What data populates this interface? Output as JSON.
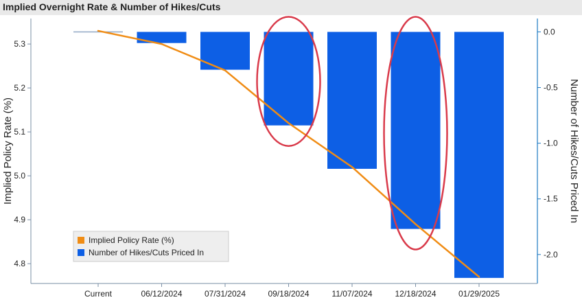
{
  "window": {
    "title": "Implied Overnight Rate & Number of Hikes/Cuts"
  },
  "chart_data": {
    "type": "bar",
    "title": "Implied Overnight Rate & Number of Hikes/Cuts",
    "categories": [
      "Current",
      "06/12/2024",
      "07/31/2024",
      "09/18/2024",
      "11/07/2024",
      "12/18/2024",
      "01/29/2025"
    ],
    "series": [
      {
        "name": "Number of Hikes/Cuts Priced In",
        "type": "bar",
        "axis": "right",
        "color": "#0d5fe5",
        "values": [
          0.0,
          -0.1,
          -0.34,
          -0.84,
          -1.23,
          -1.77,
          -2.21
        ]
      },
      {
        "name": "Implied Policy Rate (%)",
        "type": "line",
        "axis": "left",
        "color": "#f08c14",
        "values": [
          5.33,
          5.3,
          5.24,
          5.12,
          5.02,
          4.89,
          4.77
        ]
      }
    ],
    "ylabel_left": "Implied Policy Rate (%)",
    "ylabel_right": "Number of Hikes/Cuts Priced In",
    "ylim_left": [
      4.755,
      5.358
    ],
    "ylim_right": [
      -2.26,
      0.12
    ],
    "yticks_left": [
      "5.3",
      "5.2",
      "5.1",
      "5.0",
      "4.9",
      "4.8"
    ],
    "yticks_left_values": [
      5.3,
      5.2,
      5.1,
      5.0,
      4.9,
      4.8
    ],
    "yticks_right": [
      "0.0",
      "-0.5",
      "-1.0",
      "-1.5",
      "-2.0"
    ],
    "yticks_right_values": [
      0.0,
      -0.5,
      -1.0,
      -1.5,
      -2.0
    ],
    "legend": {
      "placement": "bottom-left",
      "items": [
        "Implied Policy Rate (%)",
        "Number of Hikes/Cuts Priced In"
      ]
    },
    "highlighted_categories": [
      "09/18/2024",
      "12/18/2024"
    ],
    "highlight_color": "#d93a4a",
    "grid": false
  }
}
